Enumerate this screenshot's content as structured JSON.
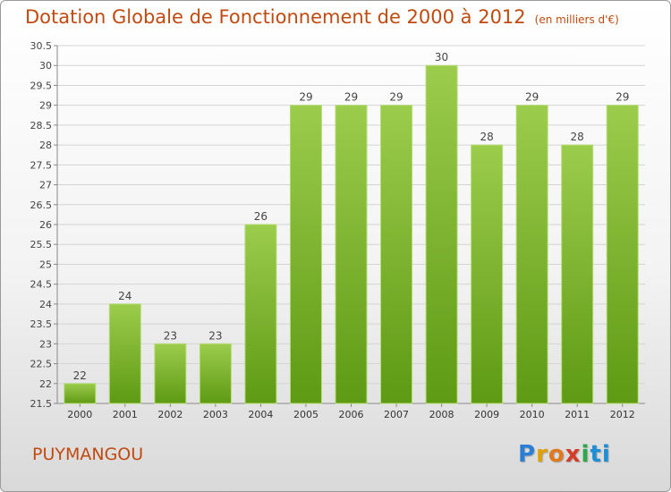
{
  "title": "Dotation Globale de Fonctionnement de 2000 à 2012",
  "unit": "(en milliers d'€)",
  "place": "PUYMANGOU",
  "logo": {
    "letters": [
      "P",
      "r",
      "o",
      "x",
      "i",
      "t",
      "i"
    ],
    "colors": [
      "#2a7fd4",
      "#e0a000",
      "#e07820",
      "#d23c28",
      "#2aa84a",
      "#1d8fd6",
      "#1d8fd6"
    ]
  },
  "chart_data": {
    "type": "bar",
    "title": "Dotation Globale de Fonctionnement de 2000 à 2012",
    "subtitle": "(en milliers d'€)",
    "categories": [
      "2000",
      "2001",
      "2002",
      "2003",
      "2004",
      "2005",
      "2006",
      "2007",
      "2008",
      "2009",
      "2010",
      "2011",
      "2012"
    ],
    "values": [
      22,
      24,
      23,
      23,
      26,
      29,
      29,
      29,
      30,
      28,
      29,
      28,
      29
    ],
    "data_labels": [
      "22",
      "24",
      "23",
      "23",
      "26",
      "29",
      "29",
      "29",
      "30",
      "28",
      "29",
      "28",
      "29"
    ],
    "ylim": [
      21.5,
      30.5
    ],
    "yticks": [
      21.5,
      22,
      22.5,
      23,
      23.5,
      24,
      24.5,
      25,
      25.5,
      26,
      26.5,
      27,
      27.5,
      28,
      28.5,
      29,
      29.5,
      30,
      30.5
    ],
    "ytick_labels": [
      "21.5",
      "22",
      "22.5",
      "23",
      "23.5",
      "24",
      "24.5",
      "25",
      "25.5",
      "26",
      "26.5",
      "27",
      "27.5",
      "28",
      "28.5",
      "29",
      "29.5",
      "30",
      "30.5"
    ],
    "grid": true,
    "legend": "none",
    "bar_color_top": "#9ccc4c",
    "bar_color_bottom": "#5e9a14"
  }
}
